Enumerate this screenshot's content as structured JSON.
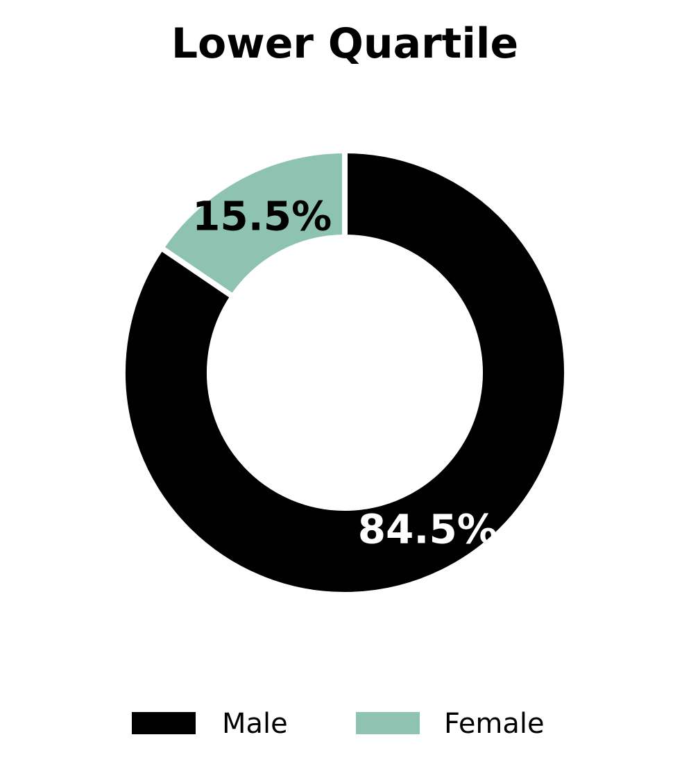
{
  "chart_data": {
    "type": "pie",
    "donut": true,
    "title": "Lower Quartile",
    "categories": [
      "Male",
      "Female"
    ],
    "values": [
      84.5,
      15.5
    ],
    "labels": [
      "84.5%",
      "15.5%"
    ],
    "colors": [
      "#000000",
      "#8dc3b0"
    ],
    "label_colors": [
      "#ffffff",
      "#000000"
    ],
    "start_angle_deg": 90,
    "direction": "counterclockwise",
    "legend": {
      "placement": "bottom",
      "entries": [
        "Male",
        "Female"
      ]
    }
  }
}
